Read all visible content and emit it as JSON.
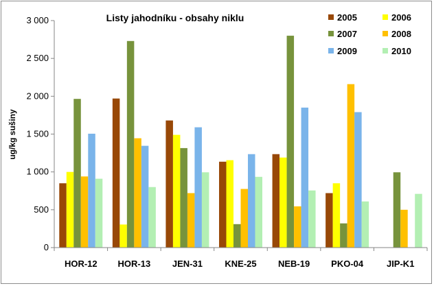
{
  "chart_data": {
    "type": "bar",
    "title": "Listy jahodníku - obsahy niklu",
    "xlabel": "",
    "ylabel": "ug/kg sušiny",
    "ylim": [
      0,
      3000
    ],
    "y_ticks": [
      "0",
      "500",
      "1 000",
      "1 500",
      "2 000",
      "2 500",
      "3 000"
    ],
    "grid": false,
    "legend_position": "top-right",
    "categories": [
      "HOR-12",
      "HOR-13",
      "JEN-31",
      "KNE-25",
      "NEB-19",
      "PKO-04",
      "JIP-K1"
    ],
    "series": [
      {
        "name": "2005",
        "color": "#984807",
        "values": [
          850,
          1970,
          1680,
          1135,
          1235,
          720,
          null
        ]
      },
      {
        "name": "2006",
        "color": "#ffff00",
        "values": [
          1000,
          305,
          1490,
          1155,
          1190,
          850,
          null
        ]
      },
      {
        "name": "2007",
        "color": "#77933c",
        "values": [
          1965,
          2730,
          1315,
          310,
          2800,
          320,
          995
        ]
      },
      {
        "name": "2008",
        "color": "#ffc000",
        "values": [
          940,
          1445,
          720,
          775,
          545,
          2160,
          500
        ]
      },
      {
        "name": "2009",
        "color": "#7ab4ea",
        "values": [
          1505,
          1345,
          1590,
          1235,
          1850,
          1790,
          null
        ]
      },
      {
        "name": "2010",
        "color": "#b3efb3",
        "values": [
          910,
          800,
          995,
          935,
          755,
          610,
          710
        ]
      }
    ]
  }
}
